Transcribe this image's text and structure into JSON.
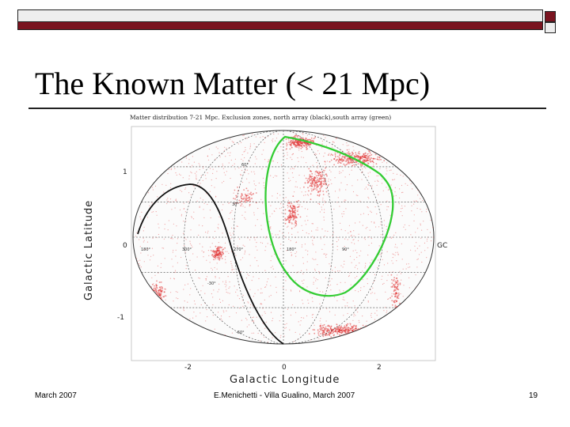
{
  "slide": {
    "title": "The Known Matter (< 21 Mpc)",
    "footer_left": "March 2007",
    "footer_center": "E.Menichetti - Villa Gualino, March 2007",
    "page_number": "19"
  },
  "figure": {
    "caption": "Matter distribution 7-21 Mpc. Exclusion zones, north array (black),south array (green)",
    "xlabel": "Galactic Longitude",
    "ylabel": "Galactic Latitude",
    "x_ticks": [
      "-2",
      "0",
      "2"
    ],
    "y_ticks": [
      "1",
      "0",
      "-1"
    ],
    "gc_label": "GC",
    "grid_labels": [
      "60°",
      "30°",
      "-30°",
      "-60°",
      "180°",
      "300°",
      "270°",
      "180°",
      "90°"
    ],
    "colors": {
      "points": "#e23a3a",
      "north_array": "#111111",
      "south_array": "#33cc33"
    }
  },
  "colors": {
    "bar": "#7a1420",
    "bar_light": "#eeeeee"
  }
}
